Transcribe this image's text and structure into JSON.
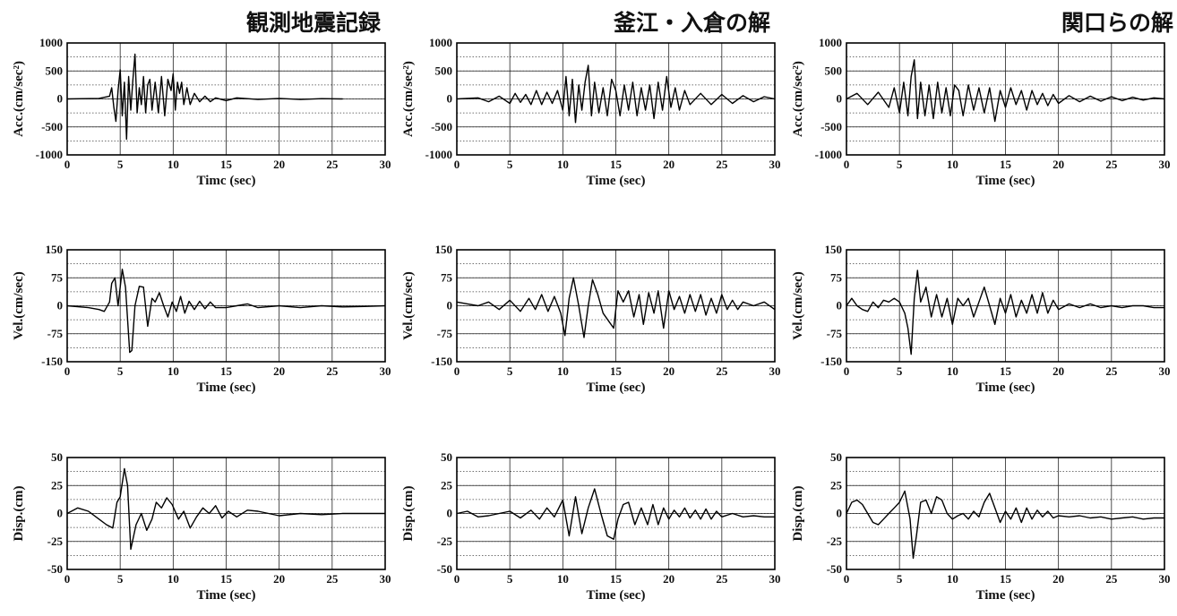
{
  "column_titles": [
    "観測地震記録",
    "釜江・入倉の解",
    "関口らの解"
  ],
  "chart_data": [
    {
      "id": "obs-acc",
      "type": "line",
      "column": 0,
      "row": 0,
      "ylabel": "Acc.(cm/sec²)",
      "xlabel": "Timc (sec)",
      "xlim": [
        0,
        30
      ],
      "ylim": [
        -1000,
        1000
      ],
      "xticks": [
        0,
        5,
        10,
        15,
        20,
        25,
        30
      ],
      "yticks": [
        1000,
        500,
        0,
        -500,
        -1000
      ],
      "grid": true,
      "x": [
        0,
        3,
        4,
        4.2,
        4.4,
        4.6,
        4.8,
        5.0,
        5.2,
        5.4,
        5.6,
        5.8,
        6.0,
        6.2,
        6.4,
        6.6,
        6.8,
        7.0,
        7.2,
        7.4,
        7.6,
        7.8,
        8.0,
        8.3,
        8.6,
        8.9,
        9.2,
        9.5,
        9.8,
        10.0,
        10.2,
        10.4,
        10.6,
        10.8,
        11.0,
        11.3,
        11.6,
        12.0,
        12.5,
        13.0,
        13.5,
        14.0,
        15.0,
        16.0,
        18.0,
        20.0,
        22.0,
        24.0,
        26.0
      ],
      "y": [
        0,
        10,
        50,
        200,
        -150,
        -400,
        150,
        520,
        -300,
        300,
        -720,
        400,
        -200,
        350,
        800,
        -250,
        200,
        -100,
        400,
        -250,
        250,
        350,
        -200,
        300,
        -250,
        400,
        -300,
        350,
        150,
        450,
        -200,
        300,
        100,
        300,
        -100,
        200,
        -100,
        100,
        -50,
        50,
        -50,
        20,
        -30,
        20,
        -10,
        10,
        -10,
        5,
        0
      ]
    },
    {
      "id": "obs-vel",
      "type": "line",
      "column": 0,
      "row": 1,
      "ylabel": "Vel.(cm/sec)",
      "xlabel": "Time (sec)",
      "xlim": [
        0,
        30
      ],
      "ylim": [
        -150,
        150
      ],
      "xticks": [
        0,
        5,
        10,
        15,
        20,
        25,
        30
      ],
      "yticks": [
        150,
        75,
        0,
        -75,
        -150
      ],
      "grid": true,
      "x": [
        0,
        2,
        3,
        3.5,
        4.0,
        4.2,
        4.5,
        4.8,
        5.2,
        5.5,
        5.9,
        6.1,
        6.4,
        6.8,
        7.2,
        7.6,
        8.0,
        8.3,
        8.7,
        9.1,
        9.5,
        9.9,
        10.3,
        10.7,
        11.1,
        11.5,
        12.0,
        12.5,
        13.0,
        13.5,
        14.0,
        15.0,
        16.0,
        17.0,
        18.0,
        20.0,
        22.0,
        24.0,
        26.0,
        28.0,
        30.0
      ],
      "y": [
        0,
        -5,
        -10,
        -15,
        10,
        60,
        75,
        0,
        98,
        50,
        -125,
        -120,
        0,
        52,
        50,
        -55,
        20,
        10,
        35,
        0,
        -30,
        10,
        -15,
        25,
        -20,
        12,
        -10,
        12,
        -8,
        10,
        -5,
        -5,
        0,
        5,
        -5,
        0,
        -5,
        0,
        -3,
        -2,
        0
      ]
    },
    {
      "id": "obs-disp",
      "type": "line",
      "column": 0,
      "row": 2,
      "ylabel": "Disp.(cm)",
      "xlabel": "Time (sec)",
      "xlim": [
        0,
        30
      ],
      "ylim": [
        -50,
        50
      ],
      "xticks": [
        0,
        5,
        10,
        15,
        20,
        25,
        30
      ],
      "yticks": [
        50,
        25,
        0,
        -25,
        -50
      ],
      "grid": true,
      "x": [
        0,
        1,
        2,
        3,
        3.7,
        4.3,
        4.7,
        5.0,
        5.4,
        5.7,
        6.0,
        6.5,
        7.0,
        7.5,
        8.0,
        8.4,
        8.9,
        9.4,
        9.9,
        10.5,
        11.0,
        11.6,
        12.2,
        12.8,
        13.4,
        14.0,
        14.6,
        15.2,
        16.0,
        17.0,
        18.0,
        19.0,
        20.0,
        22.0,
        24.0,
        26.0,
        28.0,
        30.0
      ],
      "y": [
        0,
        5,
        2,
        -5,
        -10,
        -13,
        10,
        15,
        40,
        25,
        -32,
        -10,
        0,
        -15,
        -5,
        10,
        5,
        14,
        8,
        -5,
        2,
        -13,
        -3,
        5,
        0,
        7,
        -4,
        2,
        -3,
        3,
        2,
        0,
        -2,
        0,
        -1,
        0,
        0,
        0
      ]
    },
    {
      "id": "kamae-acc",
      "type": "line",
      "column": 1,
      "row": 0,
      "ylabel": "Acc.(cm/sec²)",
      "xlabel": "Time (sec)",
      "xlim": [
        0,
        30
      ],
      "ylim": [
        -1000,
        1000
      ],
      "xticks": [
        0,
        5,
        10,
        15,
        20,
        25,
        30
      ],
      "yticks": [
        1000,
        500,
        0,
        -500,
        -1000
      ],
      "grid": true,
      "x": [
        0,
        2,
        3,
        4,
        5,
        5.5,
        6,
        6.5,
        7,
        7.5,
        8,
        8.5,
        9,
        9.5,
        10.0,
        10.3,
        10.6,
        10.9,
        11.2,
        11.5,
        11.8,
        12.1,
        12.4,
        12.7,
        13.0,
        13.4,
        13.8,
        14.2,
        14.6,
        15.0,
        15.4,
        15.8,
        16.2,
        16.6,
        17.0,
        17.4,
        17.8,
        18.2,
        18.6,
        19.0,
        19.4,
        19.8,
        20.2,
        20.6,
        21.0,
        21.5,
        22.0,
        23.0,
        24.0,
        25.0,
        26.0,
        27.0,
        28.0,
        29.0,
        30.0
      ],
      "y": [
        0,
        20,
        -50,
        50,
        -80,
        100,
        -60,
        80,
        -100,
        150,
        -100,
        120,
        -80,
        150,
        -200,
        400,
        -300,
        350,
        -420,
        250,
        -200,
        300,
        600,
        -300,
        300,
        -250,
        200,
        -300,
        350,
        150,
        -300,
        250,
        -200,
        300,
        -300,
        200,
        -200,
        250,
        -350,
        300,
        -200,
        400,
        -150,
        200,
        -200,
        150,
        -100,
        100,
        -100,
        80,
        -80,
        60,
        -50,
        40,
        0
      ]
    },
    {
      "id": "kamae-vel",
      "type": "line",
      "column": 1,
      "row": 1,
      "ylabel": "Vel.(cm/sec)",
      "xlabel": "Time (sec)",
      "xlim": [
        0,
        30
      ],
      "ylim": [
        -150,
        150
      ],
      "xticks": [
        0,
        5,
        10,
        15,
        20,
        25,
        30
      ],
      "yticks": [
        150,
        75,
        0,
        -75,
        -150
      ],
      "grid": true,
      "x": [
        0,
        1,
        2,
        3,
        4,
        5,
        6,
        6.8,
        7.4,
        8.0,
        8.6,
        9.2,
        9.8,
        10.2,
        10.6,
        11.0,
        11.5,
        12.0,
        12.4,
        12.8,
        13.3,
        13.8,
        14.3,
        14.8,
        15.2,
        15.7,
        16.2,
        16.7,
        17.2,
        17.6,
        18.1,
        18.6,
        19.0,
        19.5,
        20.0,
        20.5,
        21.0,
        21.5,
        22.0,
        22.5,
        23.0,
        23.5,
        24.0,
        24.5,
        25.0,
        25.5,
        26.0,
        26.5,
        27.0,
        28.0,
        29.0,
        30.0
      ],
      "y": [
        10,
        5,
        0,
        10,
        -10,
        15,
        -15,
        20,
        -10,
        30,
        -15,
        25,
        -20,
        -80,
        20,
        75,
        0,
        -85,
        0,
        70,
        30,
        -20,
        -40,
        -60,
        40,
        10,
        40,
        -30,
        30,
        -50,
        35,
        -20,
        40,
        -60,
        40,
        -10,
        25,
        -20,
        30,
        -15,
        30,
        -25,
        20,
        -20,
        30,
        -10,
        15,
        -10,
        10,
        0,
        10,
        -10
      ]
    },
    {
      "id": "kamae-disp",
      "type": "line",
      "column": 1,
      "row": 2,
      "ylabel": "Disp.(cm)",
      "xlabel": "Time (sec)",
      "xlim": [
        0,
        30
      ],
      "ylim": [
        -50,
        50
      ],
      "xticks": [
        0,
        5,
        10,
        15,
        20,
        25,
        30
      ],
      "yticks": [
        50,
        25,
        0,
        -25,
        -50
      ],
      "grid": true,
      "x": [
        0,
        1,
        2,
        3,
        4,
        5,
        6,
        7,
        7.8,
        8.5,
        9.2,
        10.0,
        10.6,
        11.2,
        11.8,
        12.4,
        13.0,
        13.6,
        14.2,
        14.8,
        15.2,
        15.7,
        16.2,
        16.8,
        17.4,
        18.0,
        18.5,
        19.0,
        19.5,
        20.0,
        20.5,
        21.0,
        21.5,
        22.0,
        22.5,
        23.0,
        23.5,
        24.0,
        24.5,
        25.0,
        26.0,
        27.0,
        28.0,
        29.0,
        30.0
      ],
      "y": [
        0,
        2,
        -3,
        -2,
        0,
        2,
        -4,
        3,
        -5,
        5,
        -3,
        12,
        -20,
        15,
        -18,
        5,
        22,
        0,
        -20,
        -23,
        -5,
        8,
        10,
        -10,
        5,
        -10,
        8,
        -10,
        5,
        -5,
        3,
        -3,
        5,
        -4,
        3,
        -5,
        4,
        -5,
        2,
        -3,
        0,
        -3,
        -2,
        -3,
        -3
      ]
    },
    {
      "id": "seki-acc",
      "type": "line",
      "column": 2,
      "row": 0,
      "ylabel": "Acc.(cm/sec²)",
      "xlabel": "Time (sec)",
      "xlim": [
        0,
        30
      ],
      "ylim": [
        -1000,
        1000
      ],
      "xticks": [
        0,
        5,
        10,
        15,
        20,
        25,
        30
      ],
      "yticks": [
        1000,
        500,
        0,
        -500,
        -1000
      ],
      "grid": true,
      "x": [
        0,
        1,
        2,
        3,
        4,
        4.5,
        5.0,
        5.4,
        5.8,
        6.1,
        6.4,
        6.7,
        7.0,
        7.4,
        7.8,
        8.2,
        8.6,
        9.0,
        9.4,
        9.8,
        10.2,
        10.6,
        11.0,
        11.5,
        12.0,
        12.5,
        13.0,
        13.5,
        14.0,
        14.5,
        15.0,
        15.5,
        16.0,
        16.5,
        17.0,
        17.5,
        18.0,
        18.5,
        19.0,
        19.5,
        20.0,
        21.0,
        22.0,
        23.0,
        24.0,
        25.0,
        26.0,
        27.0,
        28.0,
        29.0,
        30.0
      ],
      "y": [
        0,
        100,
        -100,
        120,
        -150,
        200,
        -250,
        300,
        -300,
        400,
        700,
        -350,
        300,
        -300,
        250,
        -350,
        300,
        -250,
        200,
        -300,
        250,
        150,
        -300,
        250,
        -200,
        200,
        -250,
        200,
        -400,
        150,
        -150,
        200,
        -100,
        150,
        -200,
        150,
        -100,
        100,
        -120,
        80,
        -80,
        60,
        -50,
        50,
        -40,
        40,
        -30,
        30,
        -20,
        20,
        0
      ]
    },
    {
      "id": "seki-vel",
      "type": "line",
      "column": 2,
      "row": 1,
      "ylabel": "Vel.(cm/sec)",
      "xlabel": "Time (sec)",
      "xlim": [
        0,
        30
      ],
      "ylim": [
        -150,
        150
      ],
      "xticks": [
        0,
        5,
        10,
        15,
        20,
        25,
        30
      ],
      "yticks": [
        150,
        75,
        0,
        -75,
        -150
      ],
      "grid": true,
      "x": [
        0,
        0.5,
        1.0,
        1.5,
        2.0,
        2.5,
        3.0,
        3.5,
        4.0,
        4.5,
        5.0,
        5.5,
        5.8,
        6.1,
        6.4,
        6.7,
        7.0,
        7.5,
        8.0,
        8.5,
        9.0,
        9.5,
        10.0,
        10.5,
        11.0,
        11.5,
        12.0,
        12.5,
        13.0,
        13.5,
        14.0,
        14.5,
        15.0,
        15.5,
        16.0,
        16.5,
        17.0,
        17.5,
        18.0,
        18.5,
        19.0,
        19.5,
        20.0,
        21.0,
        22.0,
        23.0,
        24.0,
        25.0,
        26.0,
        27.0,
        28.0,
        29.0,
        30.0
      ],
      "y": [
        0,
        20,
        0,
        -10,
        -15,
        10,
        -5,
        15,
        10,
        20,
        10,
        -20,
        -60,
        -130,
        20,
        95,
        10,
        50,
        -30,
        30,
        -30,
        20,
        -50,
        20,
        0,
        20,
        -30,
        10,
        50,
        0,
        -50,
        20,
        -20,
        30,
        -30,
        15,
        -20,
        30,
        -20,
        35,
        -20,
        15,
        -10,
        5,
        -5,
        5,
        -5,
        0,
        -5,
        0,
        0,
        -5,
        -5
      ]
    },
    {
      "id": "seki-disp",
      "type": "line",
      "column": 2,
      "row": 2,
      "ylabel": "Disp.(cm)",
      "xlabel": "Time (sec)",
      "xlim": [
        0,
        30
      ],
      "ylim": [
        -50,
        50
      ],
      "xticks": [
        0,
        5,
        10,
        15,
        20,
        25,
        30
      ],
      "yticks": [
        50,
        25,
        0,
        -25,
        -50
      ],
      "grid": true,
      "x": [
        0,
        0.5,
        1.0,
        1.5,
        2.0,
        2.5,
        3.0,
        3.5,
        4.0,
        4.5,
        5.0,
        5.5,
        6.0,
        6.3,
        6.6,
        7.0,
        7.5,
        8.0,
        8.5,
        9.0,
        9.5,
        10.0,
        10.5,
        11.0,
        11.5,
        12.0,
        12.5,
        13.0,
        13.5,
        14.0,
        14.5,
        15.0,
        15.5,
        16.0,
        16.5,
        17.0,
        17.5,
        18.0,
        18.5,
        19.0,
        19.5,
        20.0,
        21.0,
        22.0,
        23.0,
        24.0,
        25.0,
        26.0,
        27.0,
        28.0,
        29.0,
        30.0
      ],
      "y": [
        0,
        10,
        12,
        8,
        0,
        -8,
        -10,
        -5,
        0,
        5,
        10,
        20,
        -5,
        -40,
        -20,
        10,
        12,
        0,
        15,
        12,
        0,
        -5,
        -2,
        0,
        -5,
        2,
        -3,
        10,
        18,
        5,
        -8,
        2,
        -5,
        5,
        -8,
        5,
        -5,
        3,
        -3,
        2,
        -4,
        -2,
        -3,
        -2,
        -4,
        -3,
        -5,
        -4,
        -3,
        -5,
        -4,
        -4
      ]
    }
  ]
}
